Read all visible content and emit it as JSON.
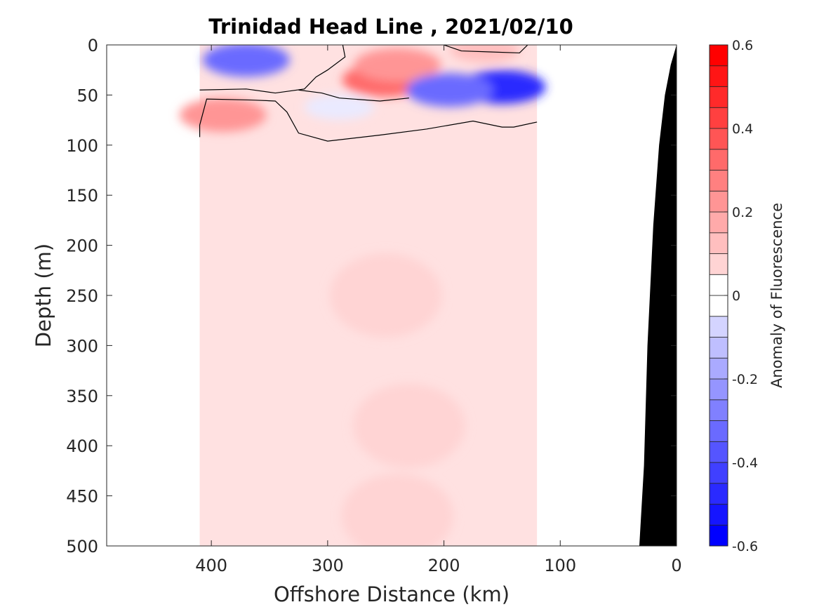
{
  "chart_data": {
    "type": "heatmap",
    "title": "Trinidad Head Line , 2021/02/10",
    "xlabel": "Offshore Distance (km)",
    "ylabel": "Depth (m)",
    "xlim": [
      490,
      0
    ],
    "ylim": [
      0,
      500
    ],
    "x_reversed": true,
    "y_reversed": true,
    "x_ticks": [
      400,
      300,
      200,
      100,
      0
    ],
    "y_ticks": [
      0,
      50,
      100,
      150,
      200,
      250,
      300,
      350,
      400,
      450,
      500
    ],
    "data_extent_km": [
      120,
      410
    ],
    "colorbar": {
      "label": "Anomaly of Fluorescence",
      "range": [
        -0.6,
        0.6
      ],
      "levels": [
        -0.6,
        -0.55,
        -0.5,
        -0.45,
        -0.4,
        -0.35,
        -0.3,
        -0.25,
        -0.2,
        -0.15,
        -0.1,
        -0.05,
        0,
        0.05,
        0.1,
        0.15,
        0.2,
        0.25,
        0.3,
        0.35,
        0.4,
        0.45,
        0.5,
        0.55,
        0.6
      ],
      "ticks": [
        0.6,
        0.4,
        0.2,
        0,
        -0.2,
        -0.4,
        -0.6
      ],
      "tick_labels": [
        "0.6",
        "0.4",
        "0.2",
        "0",
        "-0.2",
        "-0.4",
        "-0.6"
      ]
    },
    "features": [
      {
        "kind": "anomaly",
        "x": 370,
        "y": 15,
        "value": -0.35
      },
      {
        "kind": "anomaly",
        "x": 390,
        "y": 70,
        "value": 0.25
      },
      {
        "kind": "anomaly",
        "x": 250,
        "y": 35,
        "value": 0.35
      },
      {
        "kind": "anomaly",
        "x": 240,
        "y": 20,
        "value": 0.25
      },
      {
        "kind": "anomaly",
        "x": 165,
        "y": 5,
        "value": 0.15
      },
      {
        "kind": "anomaly",
        "x": 150,
        "y": 42,
        "value": -0.5
      },
      {
        "kind": "anomaly",
        "x": 195,
        "y": 45,
        "value": -0.35
      },
      {
        "kind": "anomaly",
        "x": 290,
        "y": 62,
        "value": -0.05
      },
      {
        "kind": "anomaly",
        "x": 250,
        "y": 250,
        "value": 0.1
      },
      {
        "kind": "anomaly",
        "x": 230,
        "y": 380,
        "value": 0.1
      },
      {
        "kind": "anomaly",
        "x": 240,
        "y": 470,
        "value": 0.1
      }
    ],
    "background_anomaly": 0.05,
    "contour_lines": [
      {
        "level": 0,
        "points": [
          [
            410,
            45
          ],
          [
            370,
            44
          ],
          [
            345,
            48
          ],
          [
            320,
            44
          ],
          [
            310,
            32
          ],
          [
            300,
            25
          ],
          [
            285,
            12
          ],
          [
            287,
            0
          ]
        ]
      },
      {
        "level": 0,
        "points": [
          [
            410,
            92
          ],
          [
            410,
            80
          ],
          [
            404,
            54
          ],
          [
            365,
            55
          ],
          [
            345,
            56
          ],
          [
            335,
            67
          ],
          [
            325,
            88
          ],
          [
            300,
            96
          ],
          [
            255,
            90
          ],
          [
            215,
            84
          ],
          [
            175,
            76
          ],
          [
            150,
            82
          ],
          [
            140,
            82
          ],
          [
            120,
            77
          ]
        ]
      },
      {
        "level": 0,
        "points": [
          [
            200,
            0
          ],
          [
            185,
            6
          ],
          [
            160,
            7
          ],
          [
            135,
            8
          ],
          [
            128,
            0
          ]
        ]
      },
      {
        "level": 0,
        "points": [
          [
            325,
            45
          ],
          [
            305,
            48
          ],
          [
            290,
            53
          ],
          [
            255,
            56
          ],
          [
            230,
            53
          ]
        ]
      }
    ],
    "bathymetry": [
      [
        0,
        0
      ],
      [
        5,
        20
      ],
      [
        10,
        50
      ],
      [
        15,
        100
      ],
      [
        20,
        180
      ],
      [
        25,
        300
      ],
      [
        28,
        420
      ],
      [
        32,
        500
      ]
    ]
  }
}
